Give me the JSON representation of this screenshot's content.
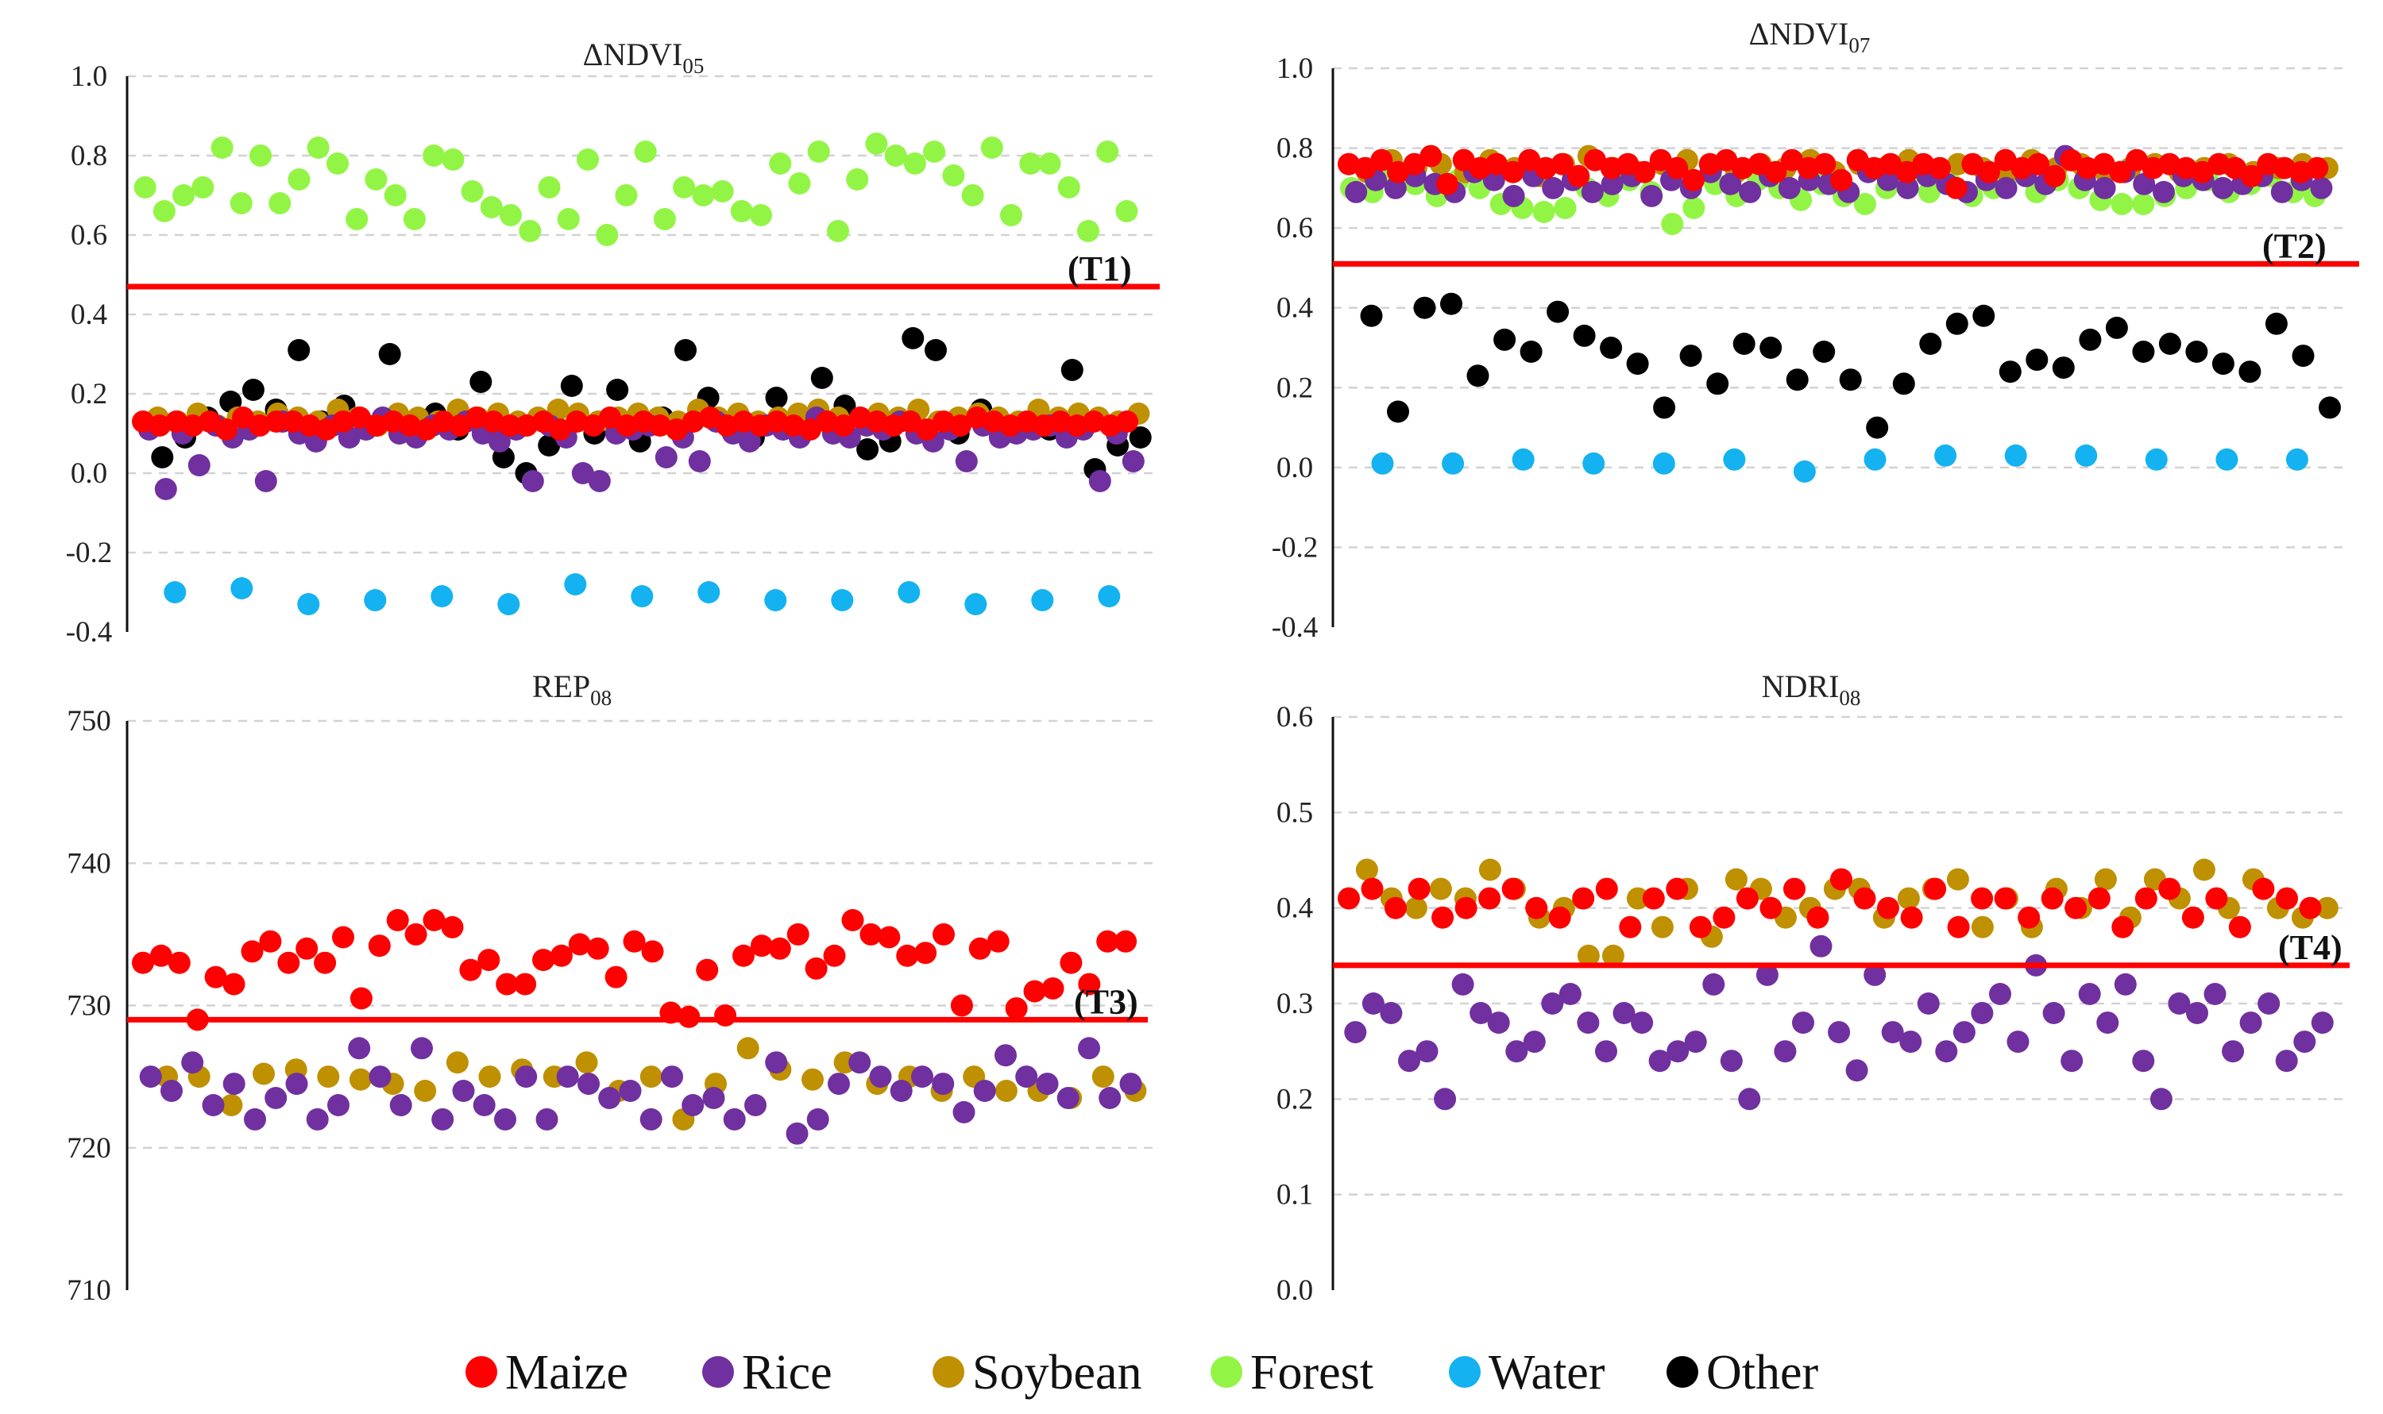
{
  "chart_data": [
    {
      "id": "p1",
      "type": "scatter",
      "title_main": "ΔNDVI",
      "title_sub": "05",
      "ylim": [
        -0.4,
        1.0
      ],
      "yticks": [
        -0.4,
        -0.2,
        0.0,
        0.2,
        0.4,
        0.6,
        0.8,
        1.0
      ],
      "tick_labels": [
        "-0.4",
        "-0.2",
        "0.0",
        "0.2",
        "0.4",
        "0.6",
        "0.8",
        "1.0"
      ],
      "threshold": {
        "label": "(T1)",
        "value": 0.47
      },
      "series": [
        {
          "name": "Maize",
          "values": [
            0.13,
            0.12,
            0.13,
            0.12,
            0.13,
            0.11,
            0.14,
            0.12,
            0.13,
            0.13,
            0.12,
            0.11,
            0.13,
            0.14,
            0.12,
            0.13,
            0.12,
            0.11,
            0.13,
            0.12,
            0.14,
            0.13,
            0.12,
            0.12,
            0.13,
            0.11,
            0.13,
            0.12,
            0.14,
            0.12,
            0.13,
            0.12,
            0.11,
            0.13,
            0.14,
            0.12,
            0.13,
            0.12,
            0.13,
            0.12,
            0.11,
            0.13,
            0.12,
            0.14,
            0.13,
            0.12,
            0.13,
            0.11,
            0.13,
            0.12,
            0.14,
            0.13,
            0.12,
            0.13,
            0.12,
            0.13,
            0.12,
            0.13,
            0.12,
            0.13
          ]
        },
        {
          "name": "Rice",
          "values": [
            0.11,
            -0.04,
            0.1,
            0.02,
            0.12,
            0.09,
            0.11,
            -0.02,
            0.13,
            0.1,
            0.08,
            0.12,
            0.09,
            0.11,
            0.14,
            0.1,
            0.09,
            0.12,
            0.11,
            0.13,
            0.1,
            0.08,
            0.11,
            -0.02,
            0.12,
            0.09,
            0.0,
            -0.02,
            0.1,
            0.11,
            0.12,
            0.04,
            0.09,
            0.03,
            0.13,
            0.1,
            0.08,
            0.12,
            0.11,
            0.09,
            0.14,
            0.1,
            0.09,
            0.12,
            0.11,
            0.13,
            0.1,
            0.08,
            0.11,
            0.03,
            0.12,
            0.09,
            0.1,
            0.11,
            0.12,
            0.09,
            0.11,
            -0.02,
            0.1,
            0.03
          ]
        },
        {
          "name": "Soybean",
          "values": [
            0.14,
            0.13,
            0.15,
            0.12,
            0.14,
            0.13,
            0.15,
            0.14,
            0.13,
            0.16,
            0.14,
            0.12,
            0.15,
            0.14,
            0.13,
            0.16,
            0.14,
            0.15,
            0.13,
            0.14,
            0.16,
            0.15,
            0.13,
            0.14,
            0.15,
            0.14,
            0.13,
            0.16,
            0.14,
            0.15,
            0.13,
            0.14,
            0.15,
            0.16,
            0.14,
            0.13,
            0.15,
            0.14,
            0.16,
            0.13,
            0.14,
            0.15,
            0.14,
            0.13,
            0.16,
            0.14,
            0.15,
            0.14,
            0.13,
            0.15
          ]
        },
        {
          "name": "Forest",
          "values": [
            0.72,
            0.66,
            0.7,
            0.72,
            0.82,
            0.68,
            0.8,
            0.68,
            0.74,
            0.82,
            0.78,
            0.64,
            0.74,
            0.7,
            0.64,
            0.8,
            0.79,
            0.71,
            0.67,
            0.65,
            0.61,
            0.72,
            0.64,
            0.79,
            0.6,
            0.7,
            0.81,
            0.64,
            0.72,
            0.7,
            0.71,
            0.66,
            0.65,
            0.78,
            0.73,
            0.81,
            0.61,
            0.74,
            0.83,
            0.8,
            0.78,
            0.81,
            0.75,
            0.7,
            0.82,
            0.65,
            0.78,
            0.78,
            0.72,
            0.61,
            0.81,
            0.66
          ]
        },
        {
          "name": "Water",
          "values": [
            -0.3,
            -0.29,
            -0.33,
            -0.32,
            -0.31,
            -0.33,
            -0.28,
            -0.31,
            -0.3,
            -0.32,
            -0.32,
            -0.3,
            -0.33,
            -0.32,
            -0.31
          ]
        },
        {
          "name": "Other",
          "values": [
            0.04,
            0.09,
            0.14,
            0.18,
            0.21,
            0.16,
            0.31,
            0.13,
            0.17,
            0.12,
            0.3,
            0.11,
            0.15,
            0.11,
            0.23,
            0.04,
            0.0,
            0.07,
            0.22,
            0.1,
            0.21,
            0.08,
            0.14,
            0.31,
            0.19,
            0.11,
            0.09,
            0.19,
            0.12,
            0.24,
            0.17,
            0.06,
            0.08,
            0.34,
            0.31,
            0.1,
            0.16,
            0.1,
            0.12,
            0.11,
            0.26,
            0.01,
            0.07,
            0.09
          ]
        }
      ]
    },
    {
      "id": "p2",
      "type": "scatter",
      "title_main": "ΔNDVI",
      "title_sub": "07",
      "ylim": [
        -0.4,
        1.0
      ],
      "yticks": [
        -0.4,
        -0.2,
        0.0,
        0.2,
        0.4,
        0.6,
        0.8,
        1.0
      ],
      "tick_labels": [
        "-0.4",
        "-0.2",
        "0.0",
        "0.2",
        "0.4",
        "0.6",
        "0.8",
        "1.0"
      ],
      "threshold": {
        "label": "(T2)",
        "value": 0.51
      },
      "series": [
        {
          "name": "Maize",
          "values": [
            0.76,
            0.75,
            0.77,
            0.74,
            0.76,
            0.78,
            0.71,
            0.77,
            0.75,
            0.76,
            0.74,
            0.77,
            0.75,
            0.76,
            0.73,
            0.77,
            0.75,
            0.76,
            0.74,
            0.77,
            0.75,
            0.72,
            0.76,
            0.77,
            0.75,
            0.76,
            0.74,
            0.77,
            0.75,
            0.76,
            0.72,
            0.77,
            0.75,
            0.76,
            0.74,
            0.76,
            0.75,
            0.7,
            0.76,
            0.74,
            0.77,
            0.75,
            0.76,
            0.73,
            0.77,
            0.75,
            0.76,
            0.74,
            0.77,
            0.75,
            0.76,
            0.75,
            0.74,
            0.76,
            0.75,
            0.73,
            0.76,
            0.75,
            0.74,
            0.75
          ]
        },
        {
          "name": "Rice",
          "values": [
            0.69,
            0.72,
            0.7,
            0.73,
            0.71,
            0.69,
            0.74,
            0.72,
            0.68,
            0.73,
            0.7,
            0.72,
            0.69,
            0.71,
            0.73,
            0.68,
            0.72,
            0.7,
            0.74,
            0.71,
            0.69,
            0.73,
            0.7,
            0.72,
            0.71,
            0.69,
            0.74,
            0.72,
            0.7,
            0.73,
            0.71,
            0.69,
            0.72,
            0.7,
            0.73,
            0.71,
            0.78,
            0.72,
            0.7,
            0.74,
            0.71,
            0.69,
            0.73,
            0.72,
            0.7,
            0.71,
            0.73,
            0.69,
            0.72,
            0.7
          ]
        },
        {
          "name": "Soybean",
          "values": [
            0.74,
            0.77,
            0.75,
            0.76,
            0.74,
            0.77,
            0.75,
            0.73,
            0.76,
            0.78,
            0.75,
            0.74,
            0.76,
            0.77,
            0.75,
            0.74,
            0.76,
            0.75,
            0.77,
            0.74,
            0.76,
            0.75,
            0.77,
            0.74,
            0.76,
            0.75,
            0.74,
            0.77,
            0.75,
            0.76,
            0.74,
            0.75,
            0.76,
            0.74,
            0.75,
            0.76,
            0.74,
            0.75,
            0.76,
            0.75
          ]
        },
        {
          "name": "Forest",
          "values": [
            0.7,
            0.69,
            0.73,
            0.71,
            0.68,
            0.72,
            0.7,
            0.66,
            0.65,
            0.64,
            0.65,
            0.7,
            0.68,
            0.72,
            0.69,
            0.61,
            0.65,
            0.71,
            0.68,
            0.72,
            0.7,
            0.67,
            0.71,
            0.68,
            0.66,
            0.7,
            0.73,
            0.69,
            0.71,
            0.68,
            0.7,
            0.74,
            0.69,
            0.72,
            0.7,
            0.67,
            0.66,
            0.66,
            0.68,
            0.7,
            0.72,
            0.69,
            0.71,
            0.73,
            0.69,
            0.68
          ]
        },
        {
          "name": "Water",
          "values": [
            0.01,
            0.01,
            0.02,
            0.01,
            0.01,
            0.02,
            -0.01,
            0.02,
            0.03,
            0.03,
            0.03,
            0.02,
            0.02,
            0.02
          ]
        },
        {
          "name": "Other",
          "values": [
            0.38,
            0.14,
            0.4,
            0.41,
            0.23,
            0.32,
            0.29,
            0.39,
            0.33,
            0.3,
            0.26,
            0.15,
            0.28,
            0.21,
            0.31,
            0.3,
            0.22,
            0.29,
            0.22,
            0.1,
            0.21,
            0.31,
            0.36,
            0.38,
            0.24,
            0.27,
            0.25,
            0.32,
            0.35,
            0.29,
            0.31,
            0.29,
            0.26,
            0.24,
            0.36,
            0.28,
            0.15
          ]
        }
      ]
    },
    {
      "id": "p3",
      "type": "scatter",
      "title_main": "REP",
      "title_sub": "08",
      "ylim": [
        710,
        750
      ],
      "yticks": [
        710,
        720,
        730,
        740,
        750
      ],
      "tick_labels": [
        "710",
        "720",
        "730",
        "740",
        "750"
      ],
      "threshold": {
        "label": "(T3)",
        "value": 729
      },
      "series": [
        {
          "name": "Maize",
          "values": [
            733.0,
            733.5,
            733.0,
            729.0,
            732.0,
            731.5,
            733.8,
            734.5,
            733.0,
            734.0,
            733.0,
            734.8,
            730.5,
            734.2,
            736.0,
            735.0,
            736.0,
            735.5,
            732.5,
            733.2,
            731.5,
            731.5,
            733.2,
            733.5,
            734.3,
            734.0,
            732.0,
            734.5,
            733.8,
            729.5,
            729.2,
            732.5,
            729.3,
            733.5,
            734.2,
            734.0,
            735.0,
            732.6,
            733.5,
            736.0,
            735.0,
            734.8,
            733.5,
            733.7,
            735.0,
            730.0,
            734.0,
            734.5,
            729.8,
            731.0,
            731.2,
            733.0,
            731.5,
            734.5,
            734.5
          ]
        },
        {
          "name": "Rice",
          "values": [
            725.0,
            724.0,
            726.0,
            723.0,
            724.5,
            722.0,
            723.5,
            724.5,
            722.0,
            723.0,
            727.0,
            725.0,
            723.0,
            727.0,
            722.0,
            724.0,
            723.0,
            722.0,
            725.0,
            722.0,
            725.0,
            724.5,
            723.5,
            724.0,
            722.0,
            725.0,
            723.0,
            723.5,
            722.0,
            723.0,
            726.0,
            721.0,
            722.0,
            724.5,
            726.0,
            725.0,
            724.0,
            725.0,
            724.5,
            722.5,
            724.0,
            726.5,
            725.0,
            724.5,
            723.5,
            727.0,
            723.5,
            724.5
          ]
        },
        {
          "name": "Soybean",
          "values": [
            725.0,
            725.0,
            723.0,
            725.2,
            725.5,
            725.0,
            724.8,
            724.5,
            724.0,
            726.0,
            725.0,
            725.5,
            725.0,
            726.0,
            724.0,
            725.0,
            722.0,
            724.5,
            727.0,
            725.5,
            724.8,
            726.0,
            724.5,
            725.0,
            724.0,
            725.0,
            724.0,
            724.0,
            723.5,
            725.0,
            724.0
          ]
        },
        {
          "name": "Forest",
          "values": []
        },
        {
          "name": "Water",
          "values": []
        },
        {
          "name": "Other",
          "values": []
        }
      ]
    },
    {
      "id": "p4",
      "type": "scatter",
      "title_main": "NDRI",
      "title_sub": "08",
      "ylim": [
        0.0,
        0.6
      ],
      "yticks": [
        0.0,
        0.1,
        0.2,
        0.3,
        0.4,
        0.5,
        0.6
      ],
      "tick_labels": [
        "0.0",
        "0.1",
        "0.2",
        "0.3",
        "0.4",
        "0.5",
        "0.6"
      ],
      "threshold": {
        "label": "(T4)",
        "value": 0.34
      },
      "series": [
        {
          "name": "Maize",
          "values": [
            0.41,
            0.42,
            0.4,
            0.42,
            0.39,
            0.4,
            0.41,
            0.42,
            0.4,
            0.39,
            0.41,
            0.42,
            0.38,
            0.41,
            0.42,
            0.38,
            0.39,
            0.41,
            0.4,
            0.42,
            0.39,
            0.43,
            0.41,
            0.4,
            0.39,
            0.42,
            0.38,
            0.41,
            0.41,
            0.39,
            0.41,
            0.4,
            0.41,
            0.38,
            0.41,
            0.42,
            0.39,
            0.41,
            0.38,
            0.42,
            0.41,
            0.4
          ]
        },
        {
          "name": "Rice",
          "values": [
            0.27,
            0.3,
            0.29,
            0.24,
            0.25,
            0.2,
            0.32,
            0.29,
            0.28,
            0.25,
            0.26,
            0.3,
            0.31,
            0.28,
            0.25,
            0.29,
            0.28,
            0.24,
            0.25,
            0.26,
            0.32,
            0.24,
            0.2,
            0.33,
            0.25,
            0.28,
            0.36,
            0.27,
            0.23,
            0.33,
            0.27,
            0.26,
            0.3,
            0.25,
            0.27,
            0.29,
            0.31,
            0.26,
            0.34,
            0.29,
            0.24,
            0.31,
            0.28,
            0.32,
            0.24,
            0.2,
            0.3,
            0.29,
            0.31,
            0.25,
            0.28,
            0.3,
            0.24,
            0.26,
            0.28
          ]
        },
        {
          "name": "Soybean",
          "values": [
            0.44,
            0.41,
            0.4,
            0.42,
            0.41,
            0.44,
            0.42,
            0.39,
            0.4,
            0.35,
            0.35,
            0.41,
            0.38,
            0.42,
            0.37,
            0.43,
            0.42,
            0.39,
            0.4,
            0.42,
            0.42,
            0.39,
            0.41,
            0.42,
            0.43,
            0.38,
            0.41,
            0.38,
            0.42,
            0.4,
            0.43,
            0.39,
            0.43,
            0.41,
            0.44,
            0.4,
            0.43,
            0.4,
            0.39,
            0.4
          ]
        },
        {
          "name": "Forest",
          "values": []
        },
        {
          "name": "Water",
          "values": []
        },
        {
          "name": "Other",
          "values": []
        }
      ]
    }
  ],
  "legend": [
    {
      "label": "Maize",
      "color": "#ff0000"
    },
    {
      "label": "Rice",
      "color": "#7030a0"
    },
    {
      "label": "Soybean",
      "color": "#bf9000"
    },
    {
      "label": "Forest",
      "color": "#92f545"
    },
    {
      "label": "Water",
      "color": "#14b2f0"
    },
    {
      "label": "Other",
      "color": "#000000"
    }
  ],
  "threshold_color": "#ff0000"
}
